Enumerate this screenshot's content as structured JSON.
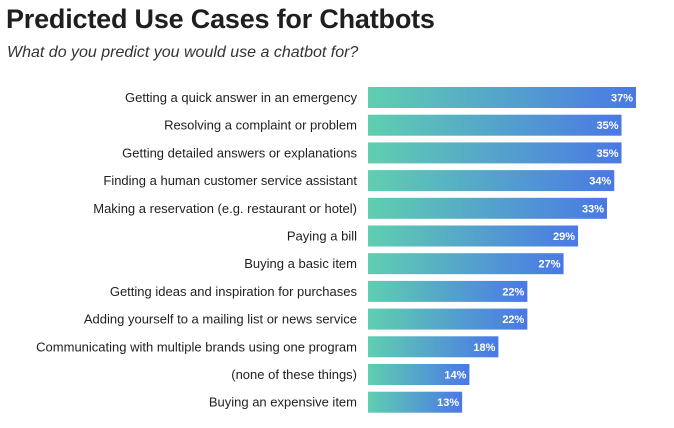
{
  "header": {
    "title": "Predicted Use Cases for Chatbots",
    "subtitle": "What do you predict you would use a chatbot for?"
  },
  "colors": {
    "bar_start": "#5fcfb0",
    "bar_end": "#4a78e6",
    "label_text": "#1f1f1f",
    "value_text": "#ffffff"
  },
  "chart_data": {
    "type": "bar",
    "orientation": "horizontal",
    "title": "Predicted Use Cases for Chatbots",
    "subtitle": "What do you predict you would use a chatbot for?",
    "xlabel": "",
    "ylabel": "",
    "xlim": [
      0,
      37
    ],
    "grid": false,
    "legend": "none",
    "categories": [
      "Getting a quick answer in an emergency",
      "Resolving a complaint or problem",
      "Getting detailed answers or explanations",
      "Finding a human customer service assistant",
      "Making a reservation (e.g. restaurant or hotel)",
      "Paying a bill",
      "Buying a basic item",
      "Getting ideas and inspiration for purchases",
      "Adding yourself to a mailing list or news service",
      "Communicating with multiple brands using one program",
      "(none of these things)",
      "Buying an expensive item"
    ],
    "values": [
      37,
      35,
      35,
      34,
      33,
      29,
      27,
      22,
      22,
      18,
      14,
      13
    ],
    "value_labels": [
      "37%",
      "35%",
      "35%",
      "34%",
      "33%",
      "29%",
      "27%",
      "22%",
      "22%",
      "18%",
      "14%",
      "13%"
    ]
  }
}
